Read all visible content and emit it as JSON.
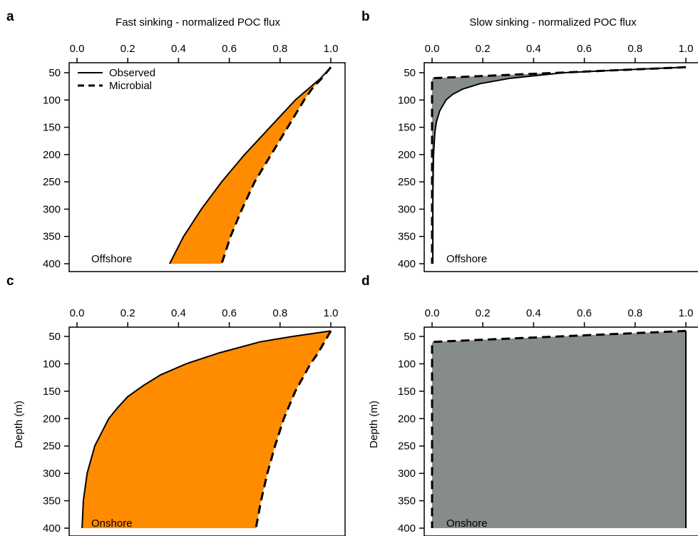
{
  "chart_data": [
    {
      "type": "area",
      "panel": "a",
      "title": "Fast sinking - normalized POC flux",
      "xlabel": "",
      "ylabel": "",
      "region_label": "Offshore",
      "fill_color": "#ff8c00",
      "xlim": [
        0.0,
        1.0
      ],
      "ylim": [
        400,
        40
      ],
      "x_ticks": [
        "0.0",
        "0.2",
        "0.4",
        "0.6",
        "0.8",
        "1.0"
      ],
      "y_ticks": [
        "50",
        "100",
        "150",
        "200",
        "250",
        "300",
        "350",
        "400"
      ],
      "legend": {
        "placement": "top-left",
        "entries": [
          {
            "name": "Observed",
            "style": "solid"
          },
          {
            "name": "Microbial",
            "style": "dashed"
          }
        ]
      },
      "series": [
        {
          "name": "Observed",
          "style": "solid",
          "depth": [
            40,
            60,
            80,
            100,
            150,
            200,
            250,
            300,
            350,
            400
          ],
          "flux": [
            1.0,
            0.96,
            0.91,
            0.86,
            0.76,
            0.66,
            0.57,
            0.49,
            0.42,
            0.365
          ]
        },
        {
          "name": "Microbial",
          "style": "dashed",
          "depth": [
            40,
            60,
            80,
            100,
            150,
            200,
            250,
            300,
            350,
            400
          ],
          "flux": [
            1.0,
            0.965,
            0.925,
            0.895,
            0.83,
            0.765,
            0.7,
            0.65,
            0.605,
            0.57
          ]
        }
      ]
    },
    {
      "type": "area",
      "panel": "b",
      "title": "Slow sinking - normalized POC flux",
      "xlabel": "",
      "ylabel": "",
      "region_label": "Offshore",
      "fill_color": "#868d89",
      "xlim": [
        0.0,
        1.0
      ],
      "ylim": [
        400,
        40
      ],
      "x_ticks": [
        "0.0",
        "0.2",
        "0.4",
        "0.6",
        "0.8",
        "1.0"
      ],
      "y_ticks": [
        "50",
        "100",
        "150",
        "200",
        "250",
        "300",
        "350",
        "400"
      ],
      "series": [
        {
          "name": "Observed",
          "style": "solid",
          "depth": [
            40,
            45,
            50,
            60,
            70,
            80,
            90,
            100,
            120,
            140,
            160,
            200,
            250,
            300,
            400
          ],
          "flux": [
            1.0,
            0.74,
            0.52,
            0.31,
            0.19,
            0.12,
            0.08,
            0.055,
            0.03,
            0.017,
            0.011,
            0.006,
            0.004,
            0.003,
            0.003
          ]
        },
        {
          "name": "Microbial",
          "style": "dashed",
          "depth": [
            40,
            60,
            100,
            200,
            300,
            400
          ],
          "flux": [
            1.0,
            0.0,
            0.0,
            0.0,
            0.0,
            0.0
          ]
        }
      ]
    },
    {
      "type": "area",
      "panel": "c",
      "title": "",
      "xlabel": "",
      "ylabel": "Depth (m)",
      "region_label": "Onshore",
      "fill_color": "#ff8c00",
      "xlim": [
        0.0,
        1.0
      ],
      "ylim": [
        400,
        40
      ],
      "x_ticks": [
        "0.0",
        "0.2",
        "0.4",
        "0.6",
        "0.8",
        "1.0"
      ],
      "y_ticks": [
        "50",
        "100",
        "150",
        "200",
        "250",
        "300",
        "350",
        "400"
      ],
      "series": [
        {
          "name": "Observed",
          "style": "solid",
          "depth": [
            40,
            50,
            60,
            80,
            100,
            120,
            140,
            160,
            180,
            200,
            250,
            300,
            350,
            400
          ],
          "flux": [
            1.0,
            0.85,
            0.72,
            0.56,
            0.43,
            0.33,
            0.26,
            0.2,
            0.16,
            0.125,
            0.07,
            0.04,
            0.025,
            0.02
          ]
        },
        {
          "name": "Microbial",
          "style": "dashed",
          "depth": [
            40,
            60,
            80,
            100,
            150,
            200,
            250,
            300,
            350,
            400
          ],
          "flux": [
            1.0,
            0.975,
            0.95,
            0.92,
            0.86,
            0.815,
            0.78,
            0.75,
            0.725,
            0.705
          ]
        }
      ]
    },
    {
      "type": "area",
      "panel": "d",
      "title": "",
      "xlabel": "",
      "ylabel": "Depth (m)",
      "region_label": "Onshore",
      "fill_color": "#868d89",
      "xlim": [
        0.0,
        1.0
      ],
      "ylim": [
        400,
        40
      ],
      "x_ticks": [
        "0.0",
        "0.2",
        "0.4",
        "0.6",
        "0.8",
        "1.0"
      ],
      "y_ticks": [
        "50",
        "100",
        "150",
        "200",
        "250",
        "300",
        "350",
        "400"
      ],
      "series": [
        {
          "name": "Observed",
          "style": "solid",
          "depth": [
            40,
            100,
            200,
            300,
            400
          ],
          "flux": [
            1.0,
            1.0,
            1.0,
            1.0,
            1.0
          ]
        },
        {
          "name": "Microbial",
          "style": "dashed",
          "depth": [
            40,
            60,
            100,
            200,
            300,
            400
          ],
          "flux": [
            1.0,
            0.0,
            0.0,
            0.0,
            0.0,
            0.0
          ]
        }
      ]
    }
  ]
}
